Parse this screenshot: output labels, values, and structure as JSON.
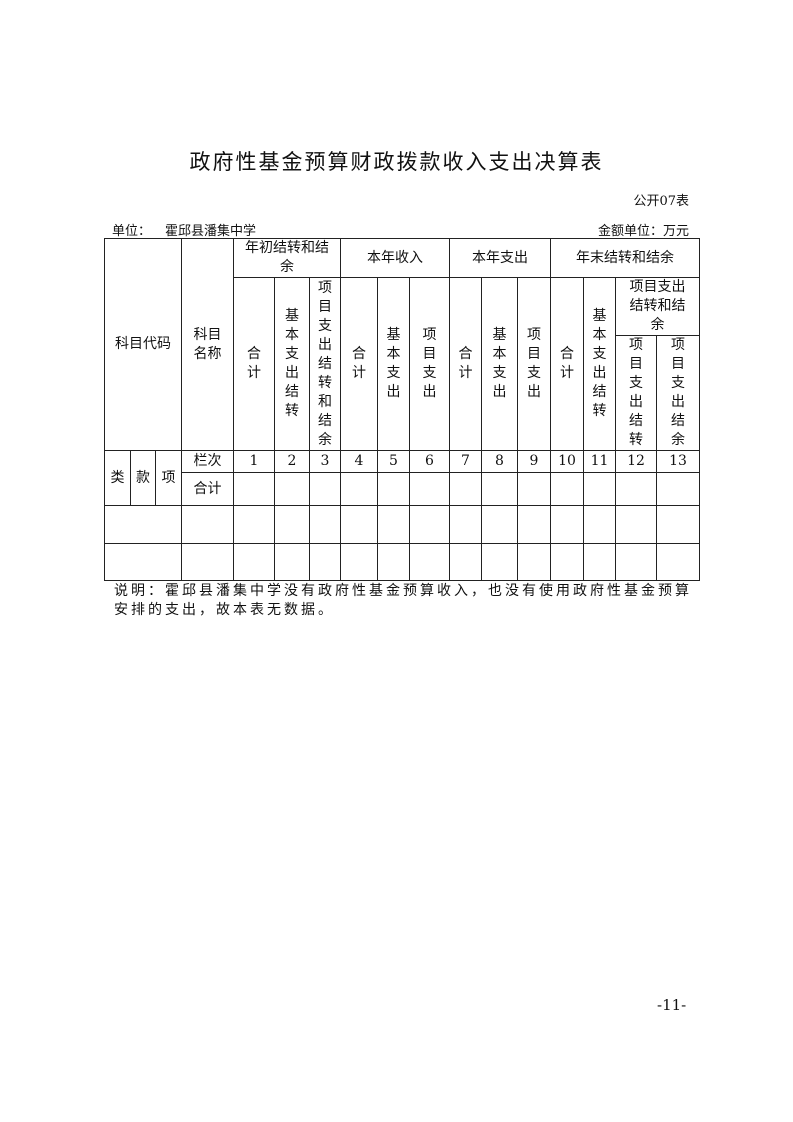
{
  "title": "政府性基金预算财政拨款收入支出决算表",
  "form_no": "公开07表",
  "unit_label": "单位：",
  "unit_name": "霍邱县潘集中学",
  "amount_unit": "金额单位：万元",
  "table": {
    "h_code": "科目代码",
    "h_name": "科目名称",
    "g1": "年初结转和结余",
    "g2": "本年收入",
    "g3": "本年支出",
    "g4": "年末结转和结余",
    "total": "合计",
    "basic_carry": "基本支出结转",
    "proj_carry_bal": "项目支出结转和结余",
    "basic": "基本支出",
    "project": "项目支出",
    "proj_carry": "项目支出结转",
    "proj_bal": "项目支出结余",
    "lei": "类",
    "kuan": "款",
    "xiang": "项",
    "col_no_label": "栏次",
    "col_nos": [
      "1",
      "2",
      "3",
      "4",
      "5",
      "6",
      "7",
      "8",
      "9",
      "10",
      "11",
      "12",
      "13"
    ],
    "total_row_label": "合计"
  },
  "note": "说明：霍邱县潘集中学没有政府性基金预算收入，也没有使用政府性基金预算安排的支出，故本表无数据。",
  "page_no": "-11-"
}
